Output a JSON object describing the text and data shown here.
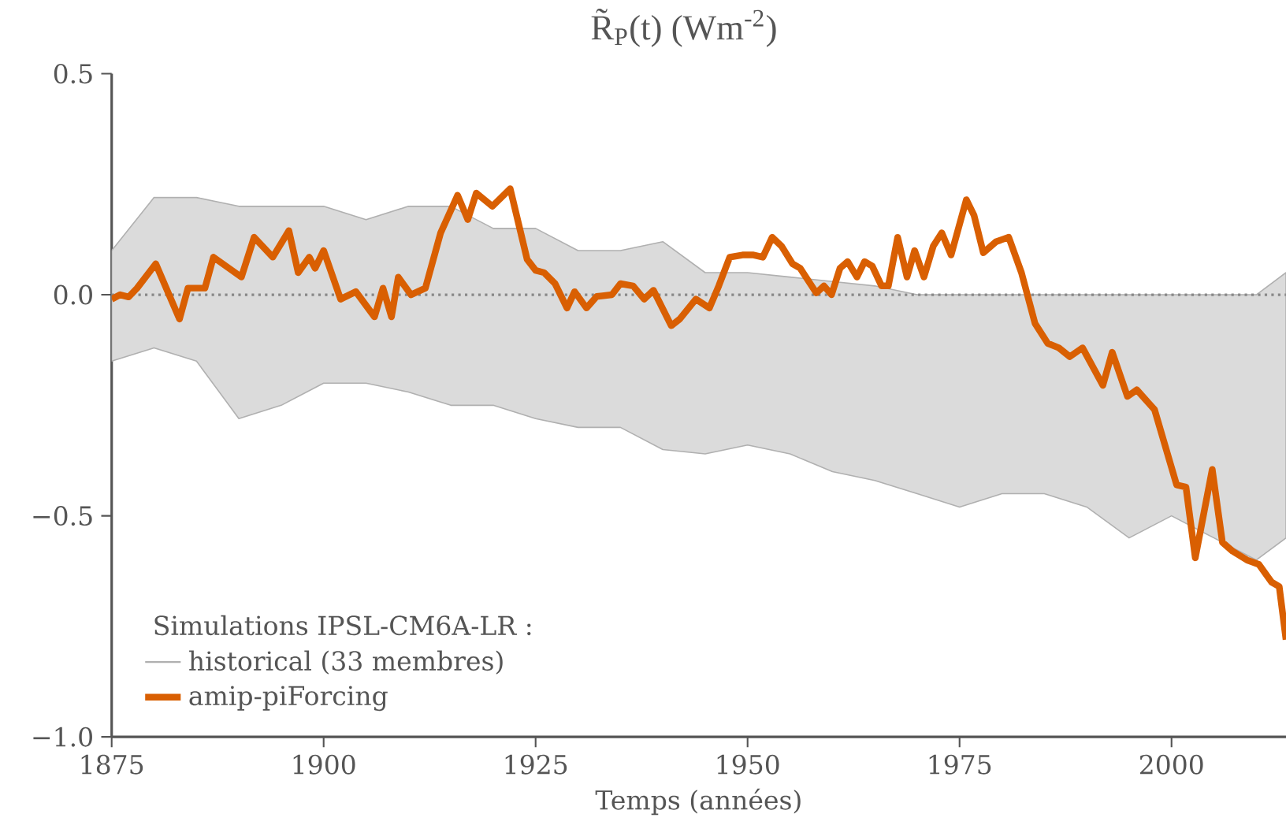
{
  "chart_data": {
    "type": "line",
    "title": "R̃$_{P}$(t) (Wm$^{-2}$)",
    "xlabel": "Temps (années)",
    "legend_title": "Simulations IPSL-CM6A-LR :",
    "xlim": [
      1875,
      2013.5
    ],
    "ylim": [
      -1.0,
      0.5
    ],
    "xticks": [
      1875,
      1900,
      1925,
      1950,
      1975,
      2000
    ],
    "yticks": [
      {
        "value": -1.0,
        "label": "−1.0"
      },
      {
        "value": -0.5,
        "label": "−0.5"
      },
      {
        "value": 0.0,
        "label": "0.0"
      },
      {
        "value": 0.5,
        "label": "0.5"
      }
    ],
    "legend": "bottom left",
    "grid": false,
    "ref_lines": [
      {
        "axis": "y",
        "value": 0,
        "color": "#888888",
        "line_style": "dotted"
      }
    ],
    "series": [
      {
        "name": "historical (33 membres)",
        "color": "#b0b0b0",
        "x": [
          1875,
          1880,
          1885,
          1890,
          1895,
          1900,
          1905,
          1910,
          1915,
          1920,
          1925,
          1930,
          1935,
          1940,
          1945,
          1950,
          1955,
          1960,
          1965,
          1970,
          1975,
          1980,
          1985,
          1990,
          1995,
          2000,
          2005,
          2010,
          2013.5
        ],
        "values": [
          null,
          null,
          null,
          null,
          null,
          null,
          null,
          null,
          null,
          null,
          null,
          null,
          null,
          null,
          null,
          null,
          null,
          null,
          null,
          null,
          null,
          null,
          null,
          null,
          null,
          null,
          null,
          null,
          null
        ],
        "lower": [
          -0.15,
          -0.12,
          -0.15,
          -0.28,
          -0.25,
          -0.2,
          -0.2,
          -0.22,
          -0.25,
          -0.25,
          -0.28,
          -0.3,
          -0.3,
          -0.35,
          -0.36,
          -0.34,
          -0.36,
          -0.4,
          -0.42,
          -0.45,
          -0.48,
          -0.45,
          -0.45,
          -0.48,
          -0.55,
          -0.5,
          -0.55,
          -0.6,
          -0.55
        ],
        "upper": [
          0.1,
          0.22,
          0.22,
          0.2,
          0.2,
          0.2,
          0.17,
          0.2,
          0.2,
          0.15,
          0.15,
          0.1,
          0.1,
          0.12,
          0.05,
          0.05,
          0.04,
          0.03,
          0.02,
          0.0,
          0.0,
          0.0,
          0.0,
          0.0,
          0.0,
          0.0,
          0.0,
          0.0,
          0.05
        ]
      },
      {
        "name": "amip-piForcing",
        "color": "#d95f02",
        "x": [
          1875,
          1876,
          1877,
          1878,
          1880.2,
          1883,
          1884,
          1886,
          1887,
          1890.3,
          1891.8,
          1894,
          1895.9,
          1897,
          1898.3,
          1899,
          1900,
          1902,
          1903.8,
          1906,
          1907,
          1908,
          1908.8,
          1910.3,
          1912,
          1913.8,
          1915.8,
          1917,
          1918,
          1919.9,
          1922,
          1924,
          1925,
          1926,
          1927.3,
          1928.7,
          1929.6,
          1931,
          1932.2,
          1934,
          1935,
          1936.5,
          1937.8,
          1938.9,
          1941,
          1942,
          1943.9,
          1945.5,
          1946.6,
          1947.9,
          1949.4,
          1950.7,
          1951.8,
          1952.9,
          1954,
          1955.3,
          1956.2,
          1958.1,
          1959,
          1959.9,
          1960.9,
          1961.8,
          1962.9,
          1963.8,
          1964.7,
          1965.8,
          1966.6,
          1967.7,
          1968.8,
          1969.7,
          1970.8,
          1971.9,
          1972.9,
          1974,
          1975.8,
          1976.7,
          1977.8,
          1979.3,
          1980.8,
          1982.3,
          1983.9,
          1985.4,
          1986.7,
          1988,
          1989.5,
          1991.9,
          1993,
          1994.8,
          1995.9,
          1998,
          2000.6,
          2001.7,
          2002.8,
          2004.8,
          2006,
          2007.2,
          2008.9,
          2010.3,
          2011.8,
          2012.7,
          2013.5
        ],
        "values": [
          -0.01,
          0.0,
          -0.005,
          0.015,
          0.07,
          -0.055,
          0.015,
          0.015,
          0.085,
          0.04,
          0.13,
          0.085,
          0.145,
          0.05,
          0.085,
          0.06,
          0.1,
          -0.01,
          0.007,
          -0.05,
          0.015,
          -0.05,
          0.04,
          0.0,
          0.015,
          0.14,
          0.225,
          0.17,
          0.23,
          0.2,
          0.24,
          0.08,
          0.055,
          0.05,
          0.025,
          -0.03,
          0.007,
          -0.03,
          -0.004,
          0.0,
          0.025,
          0.02,
          -0.01,
          0.01,
          -0.07,
          -0.055,
          -0.01,
          -0.03,
          0.02,
          0.085,
          0.09,
          0.09,
          0.085,
          0.13,
          0.11,
          0.07,
          0.06,
          0.004,
          0.02,
          0.0,
          0.06,
          0.075,
          0.04,
          0.075,
          0.065,
          0.02,
          0.02,
          0.13,
          0.04,
          0.1,
          0.04,
          0.11,
          0.14,
          0.09,
          0.215,
          0.18,
          0.095,
          0.12,
          0.13,
          0.05,
          -0.065,
          -0.11,
          -0.12,
          -0.14,
          -0.12,
          -0.205,
          -0.13,
          -0.23,
          -0.215,
          -0.26,
          -0.43,
          -0.435,
          -0.595,
          -0.395,
          -0.56,
          -0.58,
          -0.6,
          -0.61,
          -0.65,
          -0.66,
          -0.78
        ]
      }
    ]
  }
}
